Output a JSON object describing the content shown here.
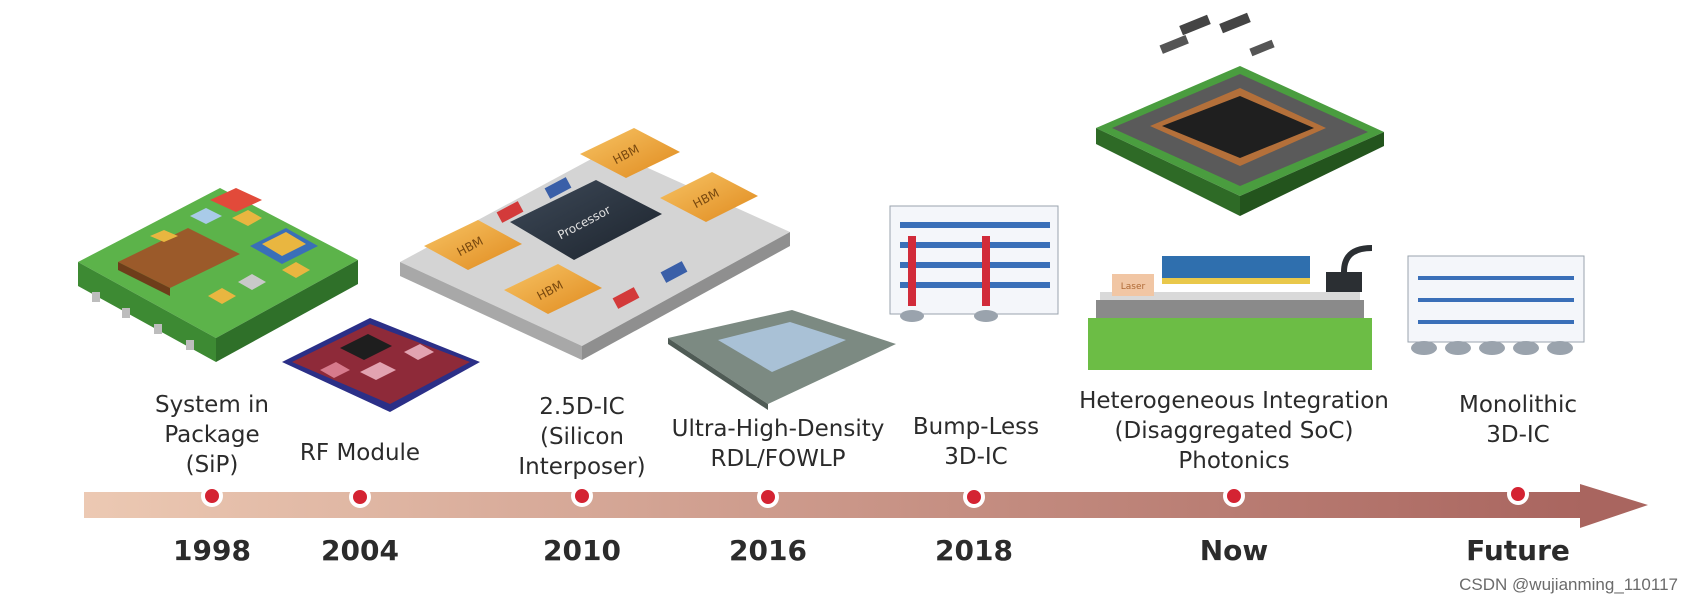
{
  "milestones": [
    {
      "label_lines": [
        "System in",
        "Package",
        "(SiP)"
      ],
      "year": "1998"
    },
    {
      "label_lines": [
        "RF Module"
      ],
      "year": "2004"
    },
    {
      "label_lines": [
        "2.5D-IC",
        "(Silicon",
        "Interposer)"
      ],
      "year": "2010"
    },
    {
      "label_lines": [
        "Ultra-High-Density",
        "RDL/FOWLP"
      ],
      "year": "2016"
    },
    {
      "label_lines": [
        "Bump-Less",
        "3D-IC"
      ],
      "year": "2018"
    },
    {
      "label_lines": [
        "Heterogeneous Integration",
        "(Disaggregated SoC)",
        "Photonics"
      ],
      "year": "Now"
    },
    {
      "label_lines": [
        "Monolithic",
        "3D-IC"
      ],
      "year": "Future"
    }
  ],
  "chip_labels": {
    "hbm": "HBM",
    "processor": "Processor",
    "laser": "Laser"
  },
  "watermark": "CSDN @wujianming_110117",
  "colors": {
    "arrow_start": "#ecc9b3",
    "arrow_end": "#a9655f",
    "dot": "#d42332",
    "pcb_green": "#5cb34a",
    "hbm_orange": "#f0a531"
  }
}
